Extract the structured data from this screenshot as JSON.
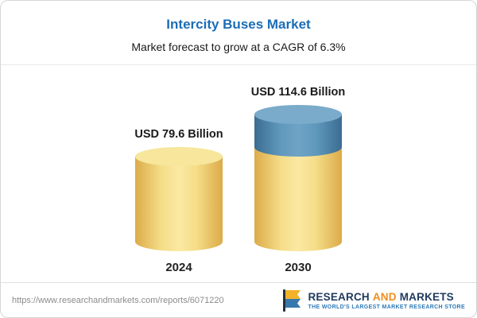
{
  "header": {
    "title": "Intercity Buses Market",
    "subtitle": "Market forecast to grow at a CAGR of 6.3%"
  },
  "chart_data": {
    "type": "bar",
    "title": "Intercity Buses Market",
    "subtitle": "Market forecast to grow at a CAGR of 6.3%",
    "categories": [
      "2024",
      "2030"
    ],
    "values": [
      79.6,
      114.6
    ],
    "value_labels": [
      "USD 79.6 Billion",
      "USD 114.6 Billion"
    ],
    "unit": "USD Billion",
    "cagr": "6.3%",
    "axes": "none",
    "legend": "none",
    "colors": {
      "bar_yellow": "#F5DD88",
      "bar_blue_growth_segment": "#4E80A8",
      "title_blue": "#1B6DB6"
    }
  },
  "footer": {
    "url": "https://www.researchandmarkets.com/reports/6071220",
    "logo": {
      "part1": "RESEARCH",
      "part2": "AND",
      "part3": "MARKETS",
      "tagline": "THE WORLD'S LARGEST MARKET RESEARCH STORE"
    }
  }
}
